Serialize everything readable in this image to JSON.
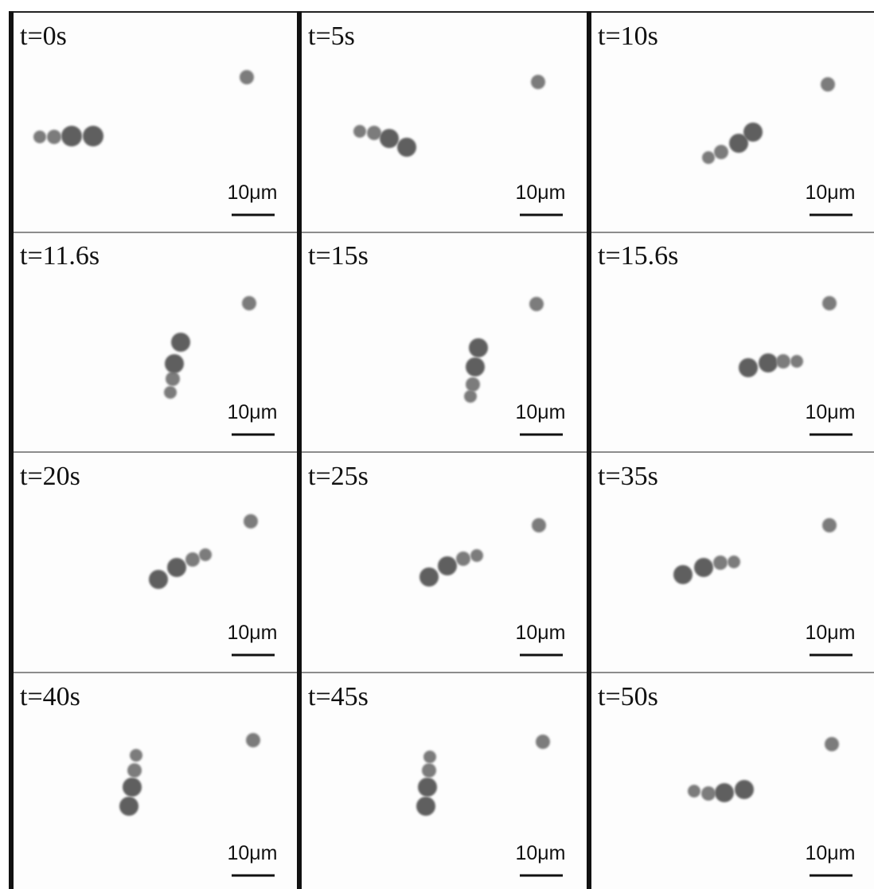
{
  "panels": [
    {
      "time": "t=0s",
      "scale_bar": "10μm"
    },
    {
      "time": "t=5s",
      "scale_bar": "10μm"
    },
    {
      "time": "t=10s",
      "scale_bar": "10μm"
    },
    {
      "time": "t=11.6s",
      "scale_bar": "10μm"
    },
    {
      "time": "t=15s",
      "scale_bar": "10μm"
    },
    {
      "time": "t=15.6s",
      "scale_bar": "10μm"
    },
    {
      "time": "t=20s",
      "scale_bar": "10μm"
    },
    {
      "time": "t=25s",
      "scale_bar": "10μm"
    },
    {
      "time": "t=35s",
      "scale_bar": "10μm"
    },
    {
      "time": "t=40s",
      "scale_bar": "10μm"
    },
    {
      "time": "t=45s",
      "scale_bar": "10μm"
    },
    {
      "time": "t=50s",
      "scale_bar": "10μm"
    }
  ]
}
